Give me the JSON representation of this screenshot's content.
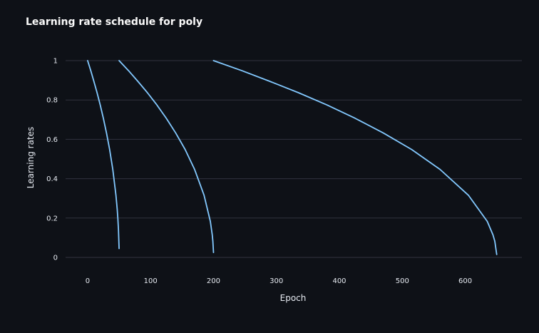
{
  "colors": {
    "background": "#0e1117",
    "series": "#83c9ff",
    "text": "#e6eaf1",
    "grid": "#31333f"
  },
  "chart_data": {
    "type": "line",
    "title": "Learning rate schedule for poly",
    "xlabel": "Epoch",
    "ylabel": "Learning rates",
    "xlim": [
      -35,
      690
    ],
    "ylim": [
      0,
      1
    ],
    "xticks": [
      0,
      100,
      200,
      300,
      400,
      500,
      600
    ],
    "yticks": [
      0,
      0.2,
      0.4,
      0.6,
      0.8,
      1
    ],
    "xtick_labels": [
      "0",
      "100",
      "200",
      "300",
      "400",
      "500",
      "600"
    ],
    "ytick_labels": [
      "0",
      "0.2",
      "0.4",
      "0.6",
      "0.8",
      "1"
    ],
    "grid": true,
    "legend": "none",
    "series": [
      {
        "x": [
          0,
          5,
          10,
          15,
          20,
          25,
          30,
          35,
          40,
          45,
          47,
          48,
          49,
          50
        ],
        "y": [
          1,
          0.949,
          0.894,
          0.837,
          0.775,
          0.707,
          0.632,
          0.548,
          0.447,
          0.316,
          0.245,
          0.2,
          0.141,
          0.045
        ]
      },
      {
        "x": [
          50,
          65,
          80,
          95,
          110,
          125,
          140,
          155,
          170,
          185,
          195,
          198,
          199,
          200
        ],
        "y": [
          1,
          0.949,
          0.894,
          0.837,
          0.775,
          0.707,
          0.632,
          0.548,
          0.447,
          0.316,
          0.183,
          0.115,
          0.082,
          0.025
        ]
      },
      {
        "x": [
          200,
          245,
          290,
          335,
          380,
          425,
          470,
          515,
          560,
          605,
          635,
          644,
          647,
          650
        ],
        "y": [
          1,
          0.949,
          0.894,
          0.837,
          0.775,
          0.707,
          0.632,
          0.548,
          0.447,
          0.316,
          0.183,
          0.115,
          0.082,
          0.015
        ]
      }
    ]
  }
}
